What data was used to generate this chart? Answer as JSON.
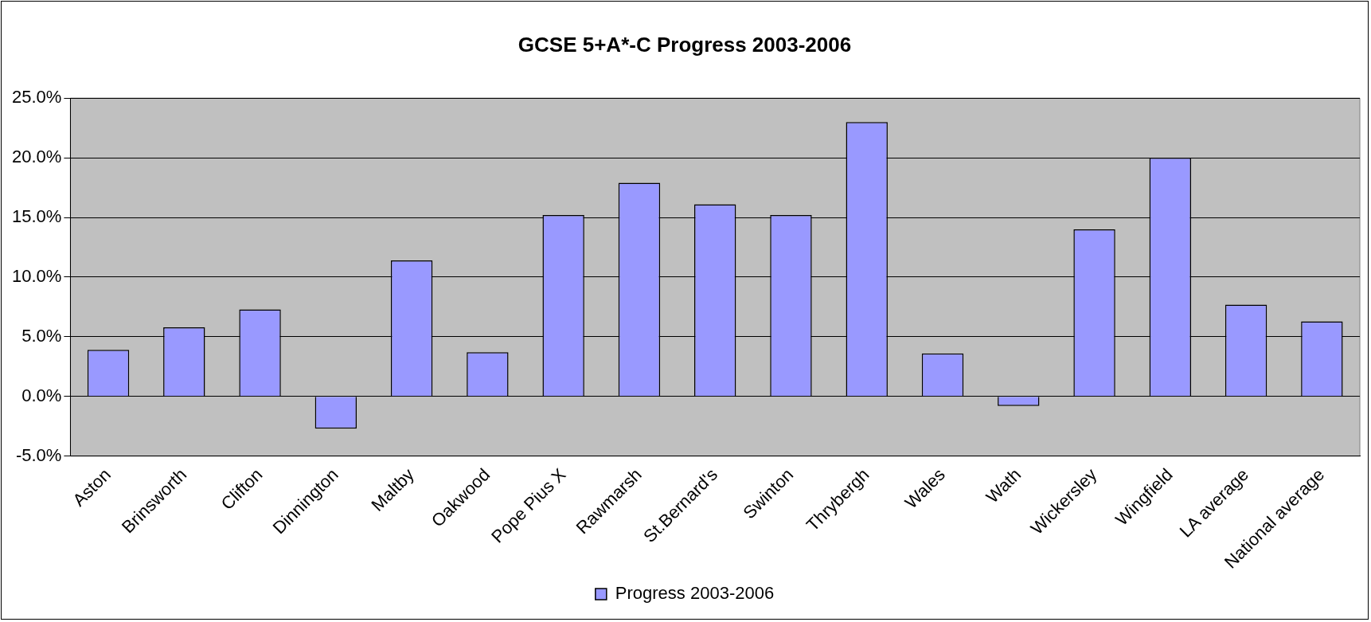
{
  "chart_data": {
    "type": "bar",
    "title": "GCSE 5+A*-C Progress 2003-2006",
    "categories": [
      "Aston",
      "Brinsworth",
      "Clifton",
      "Dinnington",
      "Maltby",
      "Oakwood",
      "Pope Pius X",
      "Rawmarsh",
      "St.Bernard's",
      "Swinton",
      "Thrybergh",
      "Wales",
      "Wath",
      "Wickersley",
      "Wingfield",
      "LA average",
      "National average"
    ],
    "series": [
      {
        "name": "Progress 2003-2006",
        "color": "#9999ff",
        "values": [
          3.9,
          5.8,
          7.3,
          -2.7,
          11.4,
          3.7,
          15.2,
          17.9,
          16.1,
          15.2,
          23.0,
          3.6,
          -0.8,
          14.0,
          20.0,
          7.7,
          6.3
        ]
      }
    ],
    "ylim": [
      -5,
      25
    ],
    "yticks": [
      {
        "value": -5,
        "label": "-5.0%"
      },
      {
        "value": 0,
        "label": "0.0%"
      },
      {
        "value": 5,
        "label": "5.0%"
      },
      {
        "value": 10,
        "label": "10.0%"
      },
      {
        "value": 15,
        "label": "15.0%"
      },
      {
        "value": 20,
        "label": "20.0%"
      },
      {
        "value": 25,
        "label": "25.0%"
      }
    ],
    "grid": "y",
    "legend": "bottom"
  }
}
